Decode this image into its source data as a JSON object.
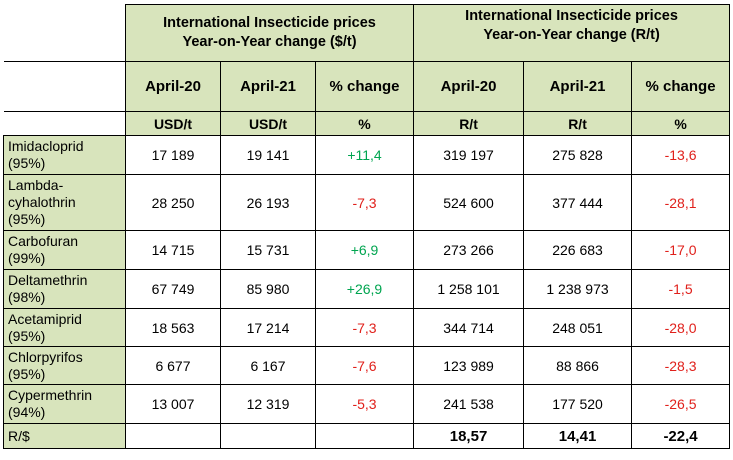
{
  "groups": {
    "usd": "International Insecticide prices\nYear-on-Year change ($/t)",
    "zar": "International Insecticide prices\nYear-on-Year change (R/t)"
  },
  "columns": [
    "April-20",
    "April-21",
    "% change",
    "April-20",
    "April-21",
    "% change"
  ],
  "units": [
    "USD/t",
    "USD/t",
    "%",
    "R/t",
    "R/t",
    "%"
  ],
  "colors": {
    "header_bg": "#d8e4bc",
    "positive": "#00a550",
    "negative": "#e0201b"
  },
  "rows": [
    {
      "name": "Imidacloprid\n(95%)",
      "usd_2020": "17 189",
      "usd_2021": "19 141",
      "usd_change": "+11,4",
      "zar_2020": "319 197",
      "zar_2021": "275 828",
      "zar_change": "-13,6"
    },
    {
      "name": "Lambda-\ncyhalothrin\n(95%)",
      "usd_2020": "28 250",
      "usd_2021": "26 193",
      "usd_change": "-7,3",
      "zar_2020": "524 600",
      "zar_2021": "377 444",
      "zar_change": "-28,1"
    },
    {
      "name": "Carbofuran\n(99%)",
      "usd_2020": "14 715",
      "usd_2021": "15 731",
      "usd_change": "+6,9",
      "zar_2020": "273 266",
      "zar_2021": "226 683",
      "zar_change": "-17,0"
    },
    {
      "name": "Deltamethrin\n(98%)",
      "usd_2020": "67 749",
      "usd_2021": "85 980",
      "usd_change": "+26,9",
      "zar_2020": "1 258 101",
      "zar_2021": "1 238 973",
      "zar_change": "-1,5"
    },
    {
      "name": "Acetamiprid\n(95%)",
      "usd_2020": "18 563",
      "usd_2021": "17 214",
      "usd_change": "-7,3",
      "zar_2020": "344 714",
      "zar_2021": "248 051",
      "zar_change": "-28,0"
    },
    {
      "name": "Chlorpyrifos\n(95%)",
      "usd_2020": "6 677",
      "usd_2021": "6 167",
      "usd_change": "-7,6",
      "zar_2020": "123 989",
      "zar_2021": "88 866",
      "zar_change": "-28,3"
    },
    {
      "name": "Cypermethrin\n(94%)",
      "usd_2020": "13 007",
      "usd_2021": "12 319",
      "usd_change": "-5,3",
      "zar_2020": "241 538",
      "zar_2021": "177 520",
      "zar_change": "-26,5"
    }
  ],
  "footer": {
    "label": "R/$",
    "zar_2020": "18,57",
    "zar_2021": "14,41",
    "zar_change": "-22,4"
  }
}
